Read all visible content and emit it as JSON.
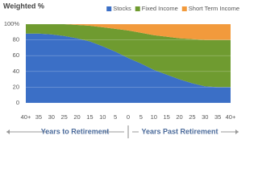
{
  "chart_data": {
    "type": "stacked-area",
    "title": "Weighted %",
    "categories": [
      "40+",
      "35",
      "30",
      "25",
      "20",
      "15",
      "10",
      "5",
      "0",
      "5",
      "10",
      "15",
      "20",
      "25",
      "30",
      "35",
      "40+"
    ],
    "series": [
      {
        "name": "Stocks",
        "color": "#3b6fc6",
        "values": [
          88,
          88,
          87,
          85,
          82,
          78,
          72,
          65,
          57,
          50,
          42,
          36,
          30,
          25,
          21,
          20,
          20
        ]
      },
      {
        "name": "Fixed Income",
        "color": "#6f9b30",
        "values": [
          12,
          12,
          13,
          15,
          17,
          20,
          24,
          29,
          35,
          39,
          44,
          48,
          52,
          56,
          59,
          60,
          60
        ]
      },
      {
        "name": "Short Term Income",
        "color": "#f29a3c",
        "values": [
          0,
          0,
          0,
          0,
          1,
          2,
          4,
          6,
          8,
          11,
          14,
          16,
          18,
          19,
          20,
          20,
          20
        ]
      }
    ],
    "ylim": [
      0,
      100
    ],
    "yticks": [
      0,
      20,
      40,
      60,
      80,
      {
        "value": 100,
        "label": "100%"
      }
    ],
    "xlabel_left": "Years to Retirement",
    "xlabel_right": "Years Past Retirement",
    "grid": true
  }
}
